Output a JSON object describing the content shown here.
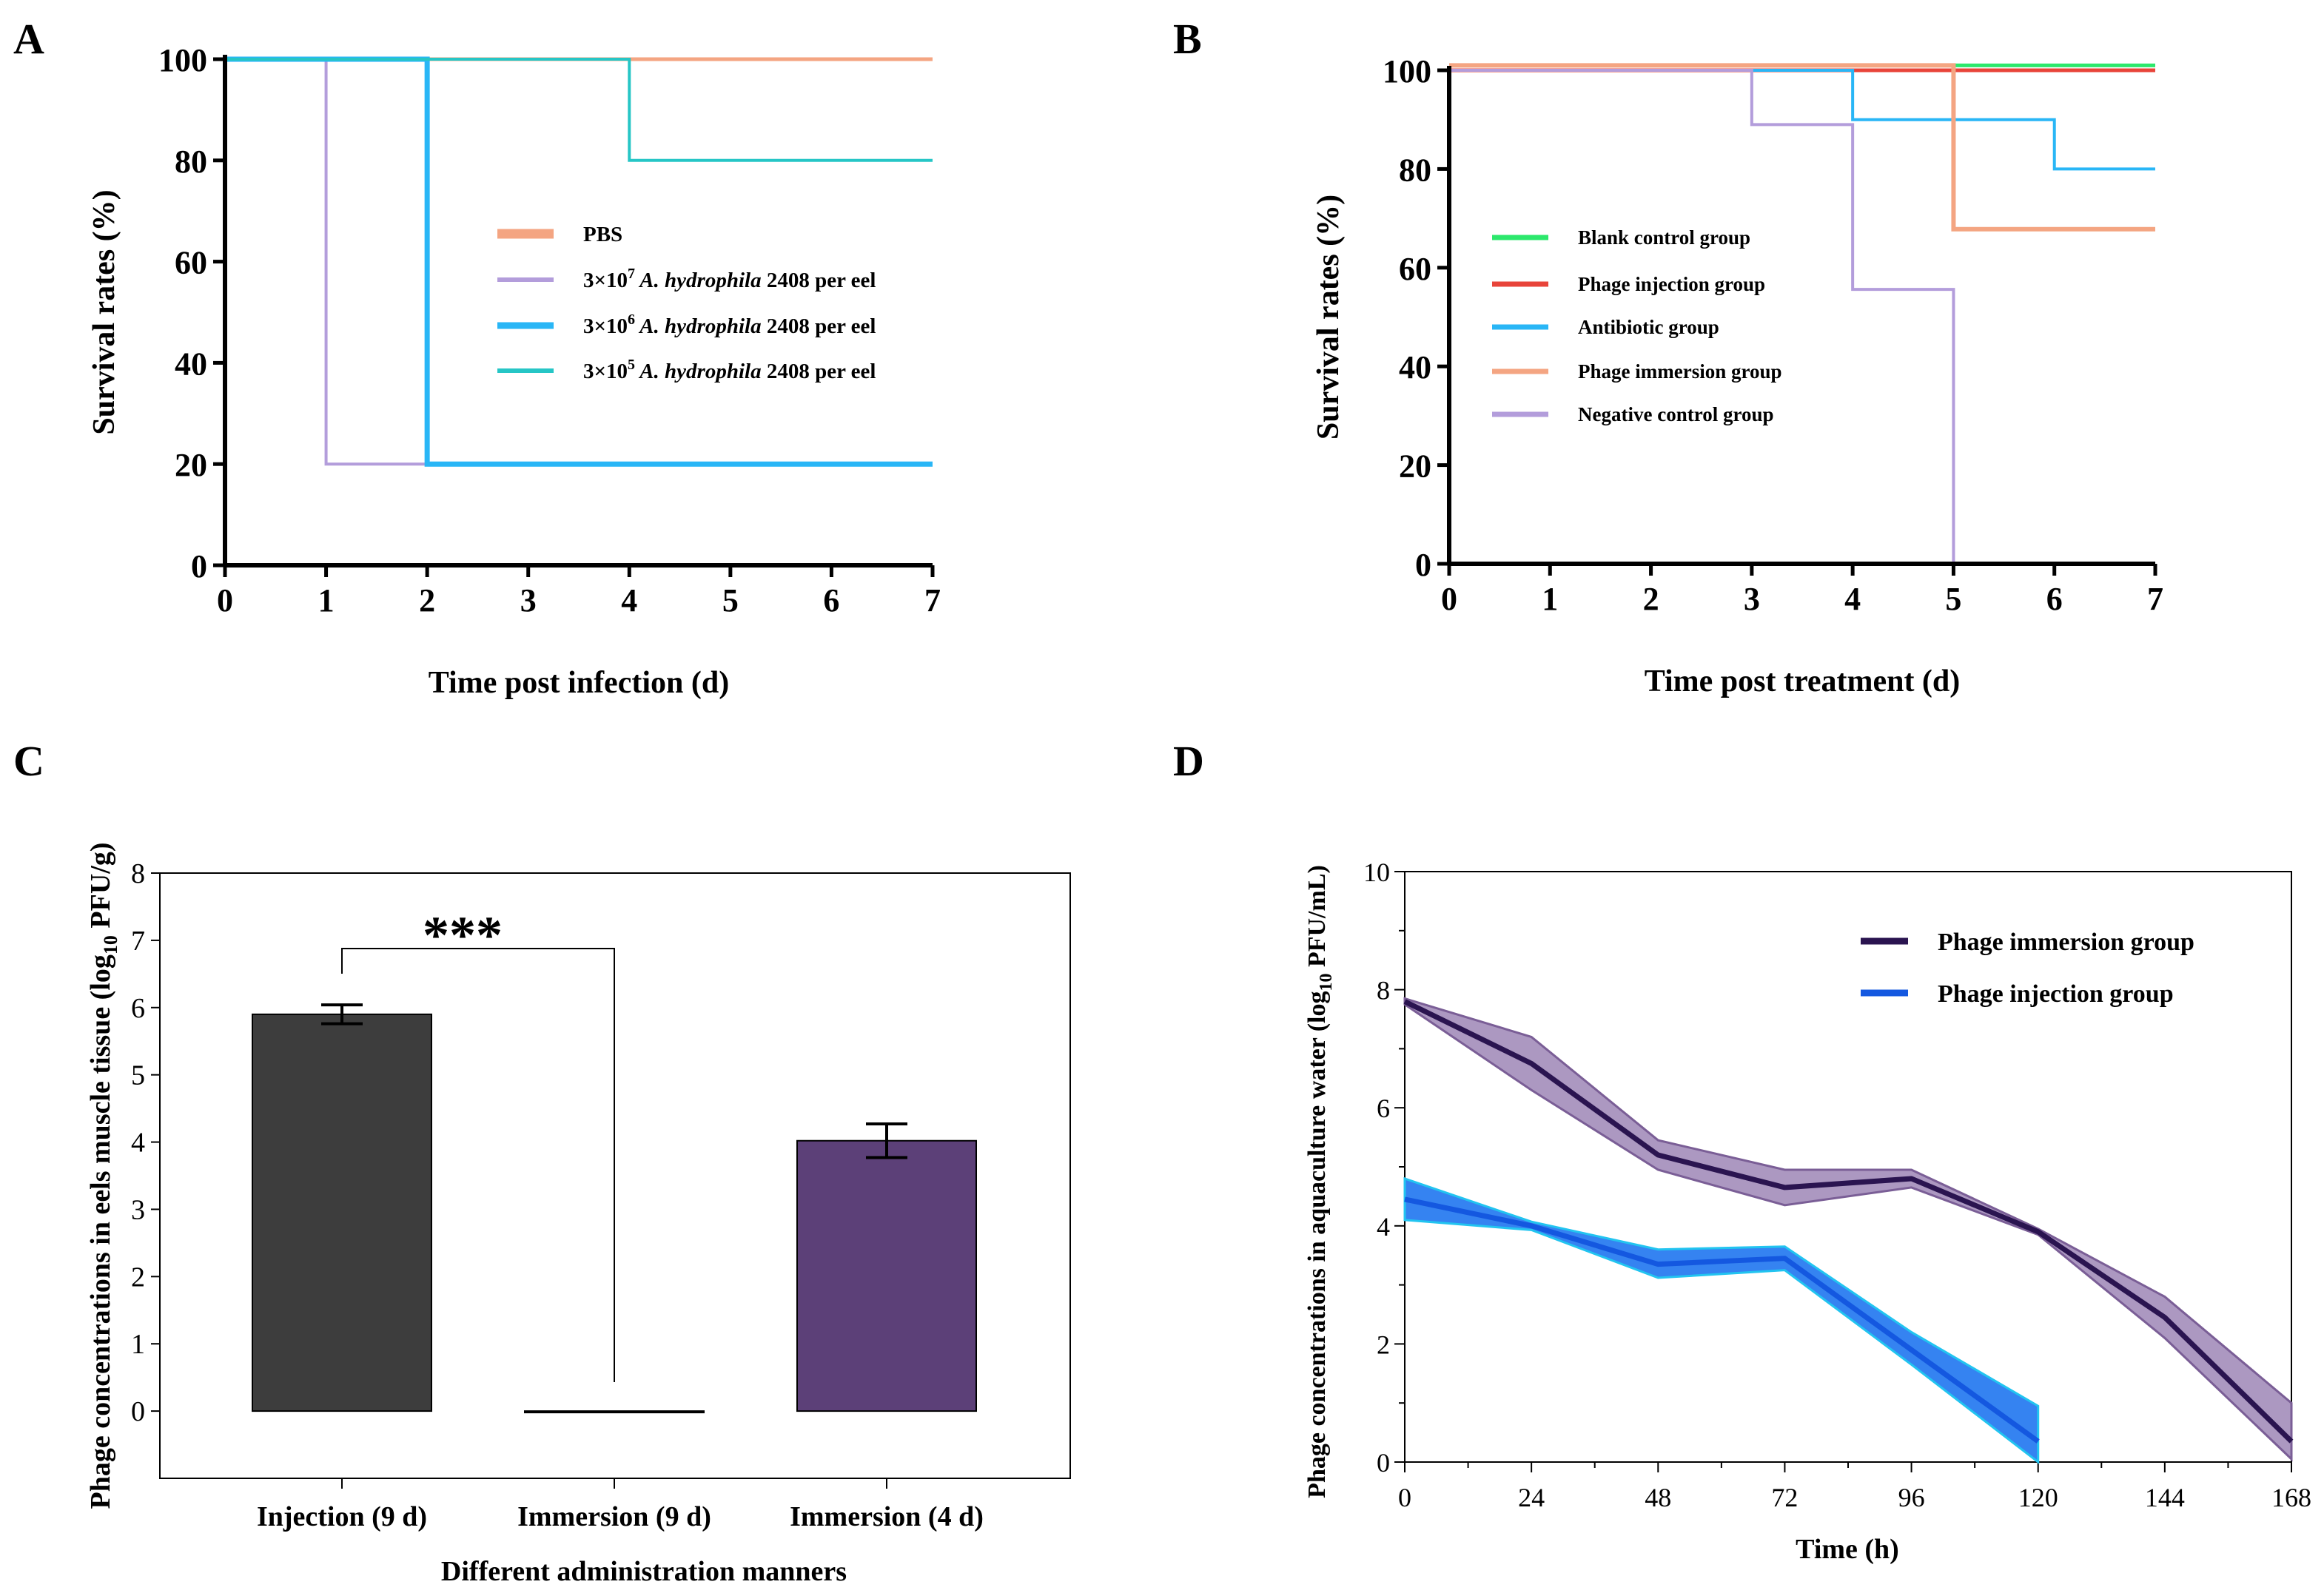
{
  "colors": {
    "pbs": "#F4A582",
    "purple": "#B39DDB",
    "blue": "#29B6F6",
    "teal": "#26C6C6",
    "green": "#2CE86C",
    "red": "#E8443A",
    "bar_injection": "#3D3D3D",
    "bar_immersion9": "#9A88AA",
    "bar_immersion4": "#5C4078",
    "immersion_line": "#2A1450",
    "immersion_band": "#9E86B6",
    "injection_line": "#1458E0",
    "injection_band": "#2A7CF0",
    "injection_band_edge": "#22C4F0"
  },
  "chart_data": [
    {
      "panel": "A",
      "type": "line",
      "step": true,
      "xlabel": "Time post infection (d)",
      "ylabel": "Survival rates (%)",
      "xlim": [
        0,
        7
      ],
      "ylim": [
        0,
        100
      ],
      "xticks": [
        "0",
        "1",
        "2",
        "3",
        "4",
        "5",
        "6",
        "7"
      ],
      "yticks": [
        "0",
        "20",
        "40",
        "60",
        "80",
        "100"
      ],
      "legend": [
        {
          "prefix": "PBS",
          "sup": "",
          "italic": "",
          "suffix": ""
        },
        {
          "prefix": "3×10",
          "sup": "7",
          "italic": " A. hydrophila",
          "suffix": " 2408 per eel"
        },
        {
          "prefix": "3×10",
          "sup": "6",
          "italic": " A. hydrophila",
          "suffix": " 2408 per eel"
        },
        {
          "prefix": "3×10",
          "sup": "5",
          "italic": " A. hydrophila",
          "suffix": " 2408 per eel"
        }
      ],
      "series": [
        {
          "name": "PBS",
          "x": [
            0,
            7
          ],
          "values": [
            100,
            100
          ],
          "color": "pbs",
          "width": 5
        },
        {
          "name": "3×10^7 A. hydrophila 2408 per eel",
          "x": [
            0,
            1,
            7
          ],
          "values": [
            100,
            20,
            20
          ],
          "color": "purple",
          "width": 4
        },
        {
          "name": "3×10^6 A. hydrophila 2408 per eel",
          "x": [
            0,
            2,
            7
          ],
          "values": [
            100,
            20,
            20
          ],
          "color": "blue",
          "width": 7
        },
        {
          "name": "3×10^5 A. hydrophila 2408 per eel",
          "x": [
            0,
            4,
            7
          ],
          "values": [
            100,
            80,
            80
          ],
          "color": "teal",
          "width": 4
        }
      ]
    },
    {
      "panel": "B",
      "type": "line",
      "step": true,
      "xlabel": "Time post treatment (d)",
      "ylabel": "Survival rates (%)",
      "xlim": [
        0,
        7
      ],
      "ylim": [
        0,
        100
      ],
      "xticks": [
        "0",
        "1",
        "2",
        "3",
        "4",
        "5",
        "6",
        "7"
      ],
      "yticks": [
        "0",
        "20",
        "40",
        "60",
        "80",
        "100"
      ],
      "legend": [
        "Blank control group",
        "Phage injection group",
        "Antibiotic group",
        "Phage immersion group",
        "Negative control group"
      ],
      "series": [
        {
          "name": "Blank control group",
          "x": [
            0,
            7
          ],
          "values": [
            101,
            101
          ],
          "color": "green",
          "width": 5
        },
        {
          "name": "Phage injection group",
          "x": [
            0,
            7
          ],
          "values": [
            100,
            100
          ],
          "color": "red",
          "width": 5
        },
        {
          "name": "Antibiotic group",
          "x": [
            0,
            4,
            6,
            7
          ],
          "values": [
            100,
            90,
            80,
            80
          ],
          "color": "blue",
          "width": 4
        },
        {
          "name": "Phage immersion group",
          "x": [
            0,
            5,
            7
          ],
          "values": [
            101,
            67.8,
            67.8
          ],
          "color": "pbs",
          "width": 6
        },
        {
          "name": "Negative control group",
          "x": [
            0,
            3,
            4,
            5,
            5
          ],
          "values": [
            100,
            89,
            55.6,
            0,
            0
          ],
          "color": "purple",
          "width": 4
        }
      ]
    },
    {
      "panel": "C",
      "type": "bar",
      "xlabel": "Different administration manners",
      "ylabel_prefix": "Phage concentrations in eels muscle tissue (log",
      "ylabel_sub": "10",
      "ylabel_suffix": " PFU/g)",
      "ylim": [
        -1,
        8
      ],
      "yticks": [
        "0",
        "1",
        "2",
        "3",
        "4",
        "5",
        "6",
        "7",
        "8"
      ],
      "categories": [
        "Injection (9 d)",
        "Immersion (9 d)",
        "Immersion (4 d)"
      ],
      "values": [
        5.9,
        0,
        4.02
      ],
      "errors": [
        0.14,
        0,
        0.25
      ],
      "bar_colors": [
        "bar_injection",
        "bar_immersion9",
        "bar_immersion4"
      ],
      "significance": "***"
    },
    {
      "panel": "D",
      "type": "area",
      "xlabel": "Time (h)",
      "ylabel_prefix": "Phage concentrations in aquaculture water (log",
      "ylabel_sub": "10",
      "ylabel_suffix": " PFU/mL)",
      "xlim": [
        0,
        168
      ],
      "ylim": [
        0,
        10
      ],
      "xticks": [
        "0",
        "24",
        "48",
        "72",
        "96",
        "120",
        "144",
        "168"
      ],
      "yticks": [
        "0",
        "2",
        "4",
        "6",
        "8",
        "10"
      ],
      "series": [
        {
          "name": "Phage immersion group",
          "x": [
            0,
            24,
            48,
            72,
            96,
            120,
            144,
            168
          ],
          "values": [
            7.8,
            6.75,
            5.2,
            4.65,
            4.8,
            3.9,
            2.45,
            0.35
          ],
          "lower": [
            7.75,
            6.3,
            4.95,
            4.35,
            4.65,
            3.85,
            2.1,
            0.05
          ],
          "upper": [
            7.85,
            7.2,
            5.45,
            4.95,
            4.95,
            3.95,
            2.8,
            1.0
          ],
          "line": "immersion_line",
          "band": "immersion_band"
        },
        {
          "name": "Phage injection group",
          "x": [
            0,
            24,
            48,
            72,
            96,
            120
          ],
          "values": [
            4.45,
            4.0,
            3.35,
            3.45,
            1.9,
            0.35
          ],
          "lower": [
            4.1,
            3.93,
            3.12,
            3.25,
            1.65,
            0.0
          ],
          "upper": [
            4.8,
            4.07,
            3.6,
            3.65,
            2.2,
            0.95
          ],
          "line": "injection_line",
          "band": "injection_band"
        }
      ]
    }
  ],
  "panel_labels": [
    "A",
    "B",
    "C",
    "D"
  ]
}
